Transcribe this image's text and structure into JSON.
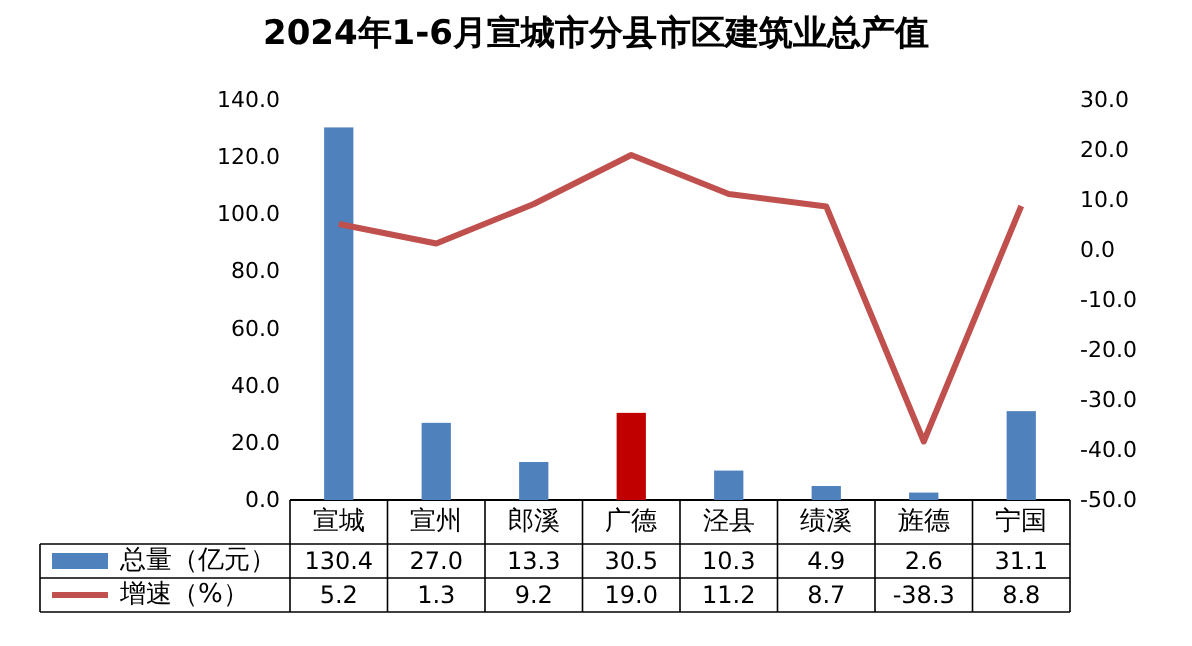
{
  "chart_data": {
    "type": "bar",
    "title": "2024年1-6月宣城市分县市区建筑业总产值",
    "categories": [
      "宣城",
      "宣州",
      "郎溪",
      "广德",
      "泾县",
      "绩溪",
      "旌德",
      "宁国"
    ],
    "series": [
      {
        "name": "总量（亿元）",
        "color": "#4f81bd",
        "colors": [
          "#4f81bd",
          "#4f81bd",
          "#4f81bd",
          "#c00000",
          "#4f81bd",
          "#4f81bd",
          "#4f81bd",
          "#4f81bd"
        ],
        "values": [
          130.4,
          27.0,
          13.3,
          30.5,
          10.3,
          4.9,
          2.6,
          31.1
        ],
        "value_labels": [
          "130.4",
          "27.0",
          "13.3",
          "30.5",
          "10.3",
          "4.9",
          "2.6",
          "31.1"
        ]
      },
      {
        "name": "增速（%）",
        "type": "line",
        "axis": "y2",
        "color": "#c0504d",
        "values": [
          5.2,
          1.3,
          9.2,
          19.0,
          11.2,
          8.7,
          -38.3,
          8.8
        ],
        "value_labels": [
          "5.2",
          "1.3",
          "9.2",
          "19.0",
          "11.2",
          "8.7",
          "-38.3",
          "8.8"
        ]
      }
    ],
    "ylim": [
      0,
      140
    ],
    "yticks": [
      {
        "value": 0,
        "label": "0.0"
      },
      {
        "value": 20,
        "label": "20.0"
      },
      {
        "value": 40,
        "label": "40.0"
      },
      {
        "value": 60,
        "label": "60.0"
      },
      {
        "value": 80,
        "label": "80.0"
      },
      {
        "value": 100,
        "label": "100.0"
      },
      {
        "value": 120,
        "label": "120.0"
      },
      {
        "value": 140,
        "label": "140.0"
      }
    ],
    "y2lim": [
      -50,
      30
    ],
    "y2ticks": [
      {
        "value": -50,
        "label": "-50.0"
      },
      {
        "value": -40,
        "label": "-40.0"
      },
      {
        "value": -30,
        "label": "-30.0"
      },
      {
        "value": -20,
        "label": "-20.0"
      },
      {
        "value": -10,
        "label": "-10.0"
      },
      {
        "value": 0,
        "label": "0.0"
      },
      {
        "value": 10,
        "label": "10.0"
      },
      {
        "value": 20,
        "label": "20.0"
      },
      {
        "value": 30,
        "label": "30.0"
      }
    ],
    "legend": "bottom",
    "grid": false,
    "marker": "none",
    "line_style": "solid"
  }
}
